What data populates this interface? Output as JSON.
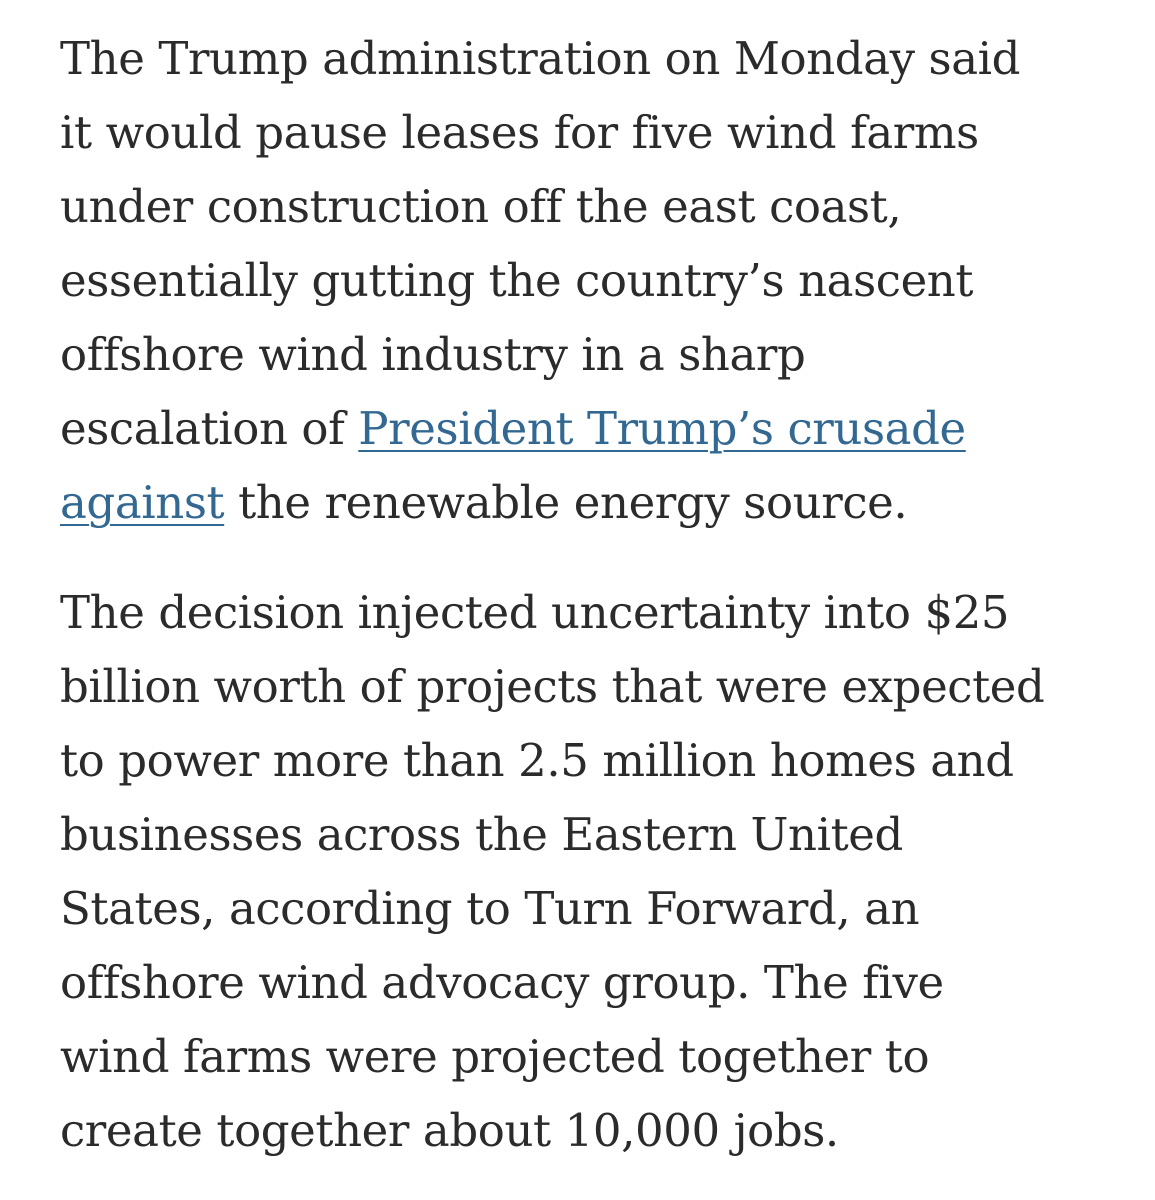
{
  "article": {
    "paragraph_1": {
      "line_1": "The Trump administration on Monday said",
      "line_2": "it would pause leases for five wind farms",
      "line_3": "under construction off the east coast,",
      "line_4": "essentially gutting the country’s nascent",
      "line_5": "offshore wind industry in a sharp",
      "line_6_prefix": "escalation of ",
      "link_part_1": "President Trump’s crusade",
      "link_part_2": "against",
      "line_7_suffix": " the renewable energy source."
    },
    "paragraph_2": {
      "line_1": "The decision injected uncertainty into $25",
      "line_2": "billion worth of projects that were expected",
      "line_3": "to power more than 2.5 million homes and",
      "line_4": "businesses across the Eastern United",
      "line_5": "States, according to Turn Forward, an",
      "line_6": "offshore wind advocacy group. The five",
      "line_7": "wind farms were projected together to",
      "line_8": "create together about 10,000 jobs."
    }
  },
  "colors": {
    "text": "#2b2b2b",
    "link": "#326891",
    "background": "#ffffff"
  }
}
